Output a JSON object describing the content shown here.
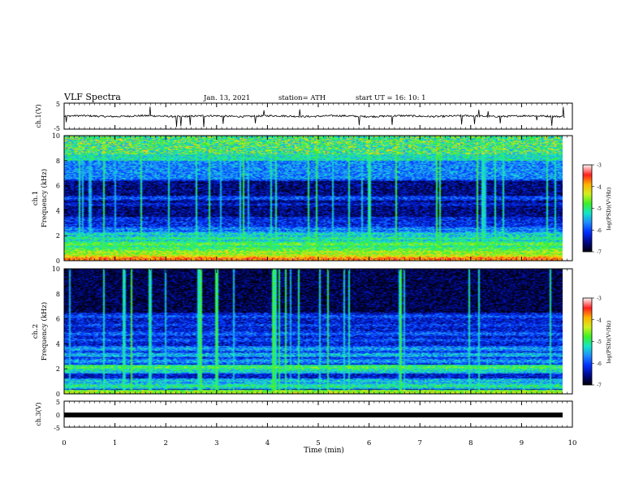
{
  "header": {
    "title": "VLF Spectra",
    "date": "Jan. 13, 2021",
    "station": "station= ATH",
    "start": "start  UT =   16: 10: 1"
  },
  "colors": {
    "background": "#ffffff",
    "ink": "#000000",
    "colormap": [
      "#000010",
      "#000a8c",
      "#0030ff",
      "#1f8cff",
      "#15e6c8",
      "#3cf028",
      "#d2f01e",
      "#ffb400",
      "#ff1e1e",
      "#fff0f0"
    ]
  },
  "chart_data": [
    {
      "id": "ch1-waveform",
      "type": "line",
      "ylabel": "ch.1(V)",
      "ylim": [
        -5,
        5
      ],
      "yticks": [
        "5",
        "-5"
      ],
      "xlim": [
        0,
        10
      ],
      "series": [
        {
          "mean": 0.0,
          "noise": 0.35,
          "spike_count": 22
        }
      ]
    },
    {
      "id": "ch1-spectrogram",
      "type": "heatmap",
      "ylabel": "ch.1\nFrequency (kHz)",
      "ylim": [
        0,
        10
      ],
      "yticks": [
        "0",
        "2",
        "4",
        "6",
        "8",
        "10"
      ],
      "xlim": [
        0,
        9.85
      ],
      "zlim": [
        -7,
        -3
      ],
      "colorbar": {
        "label": "log(PSD)(V²/Hz)",
        "ticks": [
          "-7",
          "-6",
          "-5",
          "-4",
          "-3"
        ]
      },
      "bands_khz": [
        {
          "f": 0.1,
          "level": -3.6
        },
        {
          "f": 0.35,
          "level": -4.2
        },
        {
          "f": 0.65,
          "level": -4.4
        },
        {
          "f": 0.95,
          "level": -4.8
        },
        {
          "f": 1.3,
          "level": -4.7
        },
        {
          "f": 1.75,
          "level": -5.0
        },
        {
          "f": 2.1,
          "level": -5.2
        },
        {
          "f": 2.5,
          "level": -5.6
        },
        {
          "f": 2.9,
          "level": -6.1
        },
        {
          "f": 3.3,
          "level": -6.4
        },
        {
          "f": 4.5,
          "level": -6.2
        },
        {
          "f": 5.0,
          "level": -5.9
        },
        {
          "f": 6.6,
          "level": -5.8
        }
      ]
    },
    {
      "id": "ch2-spectrogram",
      "type": "heatmap",
      "ylabel": "ch.2\nFrequency (kHz)",
      "ylim": [
        0,
        10
      ],
      "yticks": [
        "0",
        "2",
        "4",
        "6",
        "8",
        "10"
      ],
      "xlim": [
        0,
        9.85
      ],
      "zlim": [
        -7,
        -3
      ],
      "colorbar": {
        "label": "log(PSD)(V²/Hz)",
        "ticks": [
          "-7",
          "-6",
          "-5",
          "-4",
          "-3"
        ]
      },
      "bands_khz": [
        {
          "f": 0.1,
          "level": -4.4
        },
        {
          "f": 0.6,
          "level": -5.0
        },
        {
          "f": 1.0,
          "level": -5.3
        },
        {
          "f": 1.8,
          "level": -5.2
        },
        {
          "f": 2.1,
          "level": -4.8
        },
        {
          "f": 2.6,
          "level": -5.5
        },
        {
          "f": 3.1,
          "level": -5.4
        },
        {
          "f": 3.6,
          "level": -5.5
        },
        {
          "f": 4.3,
          "level": -5.9
        },
        {
          "f": 4.8,
          "level": -5.8
        },
        {
          "f": 5.5,
          "level": -6.0
        },
        {
          "f": 6.2,
          "level": -5.9
        }
      ]
    },
    {
      "id": "ch3-waveform",
      "type": "line",
      "ylabel": "ch.3(V)",
      "ylim": [
        -5,
        5
      ],
      "yticks": [
        "5",
        "0",
        "-5"
      ],
      "xlim": [
        0,
        10
      ],
      "series": [
        {
          "mean": 0.0,
          "noise": 0.3,
          "spike_count": 0
        }
      ]
    }
  ],
  "x_axis": {
    "label": "Time (min)",
    "xlim": [
      0,
      10
    ],
    "ticks": [
      "0",
      "1",
      "2",
      "3",
      "4",
      "5",
      "6",
      "7",
      "8",
      "9",
      "10"
    ]
  }
}
